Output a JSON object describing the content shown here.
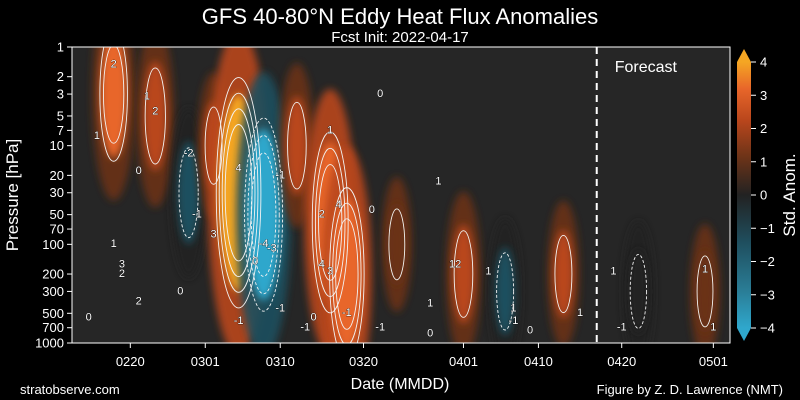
{
  "chart_data": {
    "type": "heatmap",
    "title": "GFS 40-80°N Eddy Heat Flux Anomalies",
    "subtitle": "Fcst Init: 2022-04-17",
    "xlabel": "Date (MMDD)",
    "ylabel": "Pressure [hPa]",
    "x_ticks": [
      "0220",
      "0301",
      "0310",
      "0320",
      "0401",
      "0410",
      "0420",
      "0501"
    ],
    "y_ticks": [
      1,
      2,
      3,
      5,
      7,
      10,
      20,
      30,
      50,
      70,
      100,
      200,
      300,
      500,
      700,
      1000
    ],
    "y_scale": "log",
    "y_reversed": true,
    "colorbar": {
      "label": "Std. Anom.",
      "ticks": [
        4,
        3,
        2,
        1,
        0,
        -1,
        -2,
        -3,
        -4
      ],
      "range": [
        -4,
        4
      ],
      "colors": [
        "#2fa7cc",
        "#2a7d96",
        "#1f4f5f",
        "#222222",
        "#6b3318",
        "#b9461c",
        "#e8662a",
        "#f5a623"
      ]
    },
    "forecast_label": "Forecast",
    "forecast_start": "0417",
    "features": [
      {
        "date": "0218",
        "pressure": 3,
        "value": 2.3
      },
      {
        "date": "0223",
        "pressure": 5,
        "value": 1.8
      },
      {
        "date": "0227",
        "pressure": 30,
        "value": -1.6
      },
      {
        "date": "0302",
        "pressure": 10,
        "value": 1.2
      },
      {
        "date": "0305",
        "pressure": 30,
        "value": 4.2
      },
      {
        "date": "0308",
        "pressure": 50,
        "value": -3.5
      },
      {
        "date": "0312",
        "pressure": 10,
        "value": 1.5
      },
      {
        "date": "0316",
        "pressure": 60,
        "value": 3.2
      },
      {
        "date": "0318",
        "pressure": 200,
        "value": 3.0
      },
      {
        "date": "0324",
        "pressure": 100,
        "value": 1.0
      },
      {
        "date": "0401",
        "pressure": 200,
        "value": 1.5
      },
      {
        "date": "0406",
        "pressure": 300,
        "value": -1.2
      },
      {
        "date": "0413",
        "pressure": 200,
        "value": 1.2
      },
      {
        "date": "0422",
        "pressure": 300,
        "value": -1.1
      },
      {
        "date": "0430",
        "pressure": 300,
        "value": 1.0
      }
    ],
    "contour_labels": [
      {
        "text": "2",
        "date": "0218",
        "pressure": 1.5
      },
      {
        "text": "1",
        "date": "0222",
        "pressure": 3.2
      },
      {
        "text": "2",
        "date": "0223",
        "pressure": 4.5
      },
      {
        "text": "1",
        "date": "0216",
        "pressure": 8
      },
      {
        "text": "0",
        "date": "0221",
        "pressure": 18
      },
      {
        "text": "-2",
        "date": "0227",
        "pressure": 12
      },
      {
        "text": "-1",
        "date": "0228",
        "pressure": 50
      },
      {
        "text": "4",
        "date": "0305",
        "pressure": 17
      },
      {
        "text": "3",
        "date": "0302",
        "pressure": 80
      },
      {
        "text": "-1",
        "date": "0310",
        "pressure": 20
      },
      {
        "text": "-4",
        "date": "0308",
        "pressure": 100
      },
      {
        "text": "-3",
        "date": "0309",
        "pressure": 110
      },
      {
        "text": "0",
        "date": "0307",
        "pressure": 150
      },
      {
        "text": "1",
        "date": "0316",
        "pressure": 7
      },
      {
        "text": "2",
        "date": "0315",
        "pressure": 50
      },
      {
        "text": "4",
        "date": "0317",
        "pressure": 40
      },
      {
        "text": "4",
        "date": "0315",
        "pressure": 160
      },
      {
        "text": "3",
        "date": "0316",
        "pressure": 190
      },
      {
        "text": "0",
        "date": "0321",
        "pressure": 45
      },
      {
        "text": "0",
        "date": "0322",
        "pressure": 3
      },
      {
        "text": "1",
        "date": "0218",
        "pressure": 100
      },
      {
        "text": "3",
        "date": "0219",
        "pressure": 160
      },
      {
        "text": "2",
        "date": "0219",
        "pressure": 200
      },
      {
        "text": "2",
        "date": "0221",
        "pressure": 380
      },
      {
        "text": "0",
        "date": "0226",
        "pressure": 300
      },
      {
        "text": "0",
        "date": "0215",
        "pressure": 550
      },
      {
        "text": "-1",
        "date": "0305",
        "pressure": 600
      },
      {
        "text": "-1",
        "date": "0310",
        "pressure": 450
      },
      {
        "text": "-1",
        "date": "0313",
        "pressure": 700
      },
      {
        "text": "0",
        "date": "0314",
        "pressure": 550
      },
      {
        "text": "-1",
        "date": "0318",
        "pressure": 500
      },
      {
        "text": "1",
        "date": "0329",
        "pressure": 23
      },
      {
        "text": "1",
        "date": "0328",
        "pressure": 400
      },
      {
        "text": "0",
        "date": "0328",
        "pressure": 800
      },
      {
        "text": "-1",
        "date": "0322",
        "pressure": 700
      },
      {
        "text": "12",
        "date": "0331",
        "pressure": 160
      },
      {
        "text": "1",
        "date": "0404",
        "pressure": 190
      },
      {
        "text": "1",
        "date": "0407",
        "pressure": 450
      },
      {
        "text": "-1",
        "date": "0407",
        "pressure": 600
      },
      {
        "text": "0",
        "date": "0409",
        "pressure": 750
      },
      {
        "text": "1",
        "date": "0415",
        "pressure": 500
      },
      {
        "text": "1",
        "date": "0419",
        "pressure": 190
      },
      {
        "text": "-1",
        "date": "0420",
        "pressure": 700
      },
      {
        "text": "1",
        "date": "0430",
        "pressure": 180
      },
      {
        "text": "1",
        "date": "0501",
        "pressure": 700
      }
    ],
    "footer_left": "stratobserve.com",
    "footer_right": "Figure by Z. D. Lawrence (NMT)"
  }
}
